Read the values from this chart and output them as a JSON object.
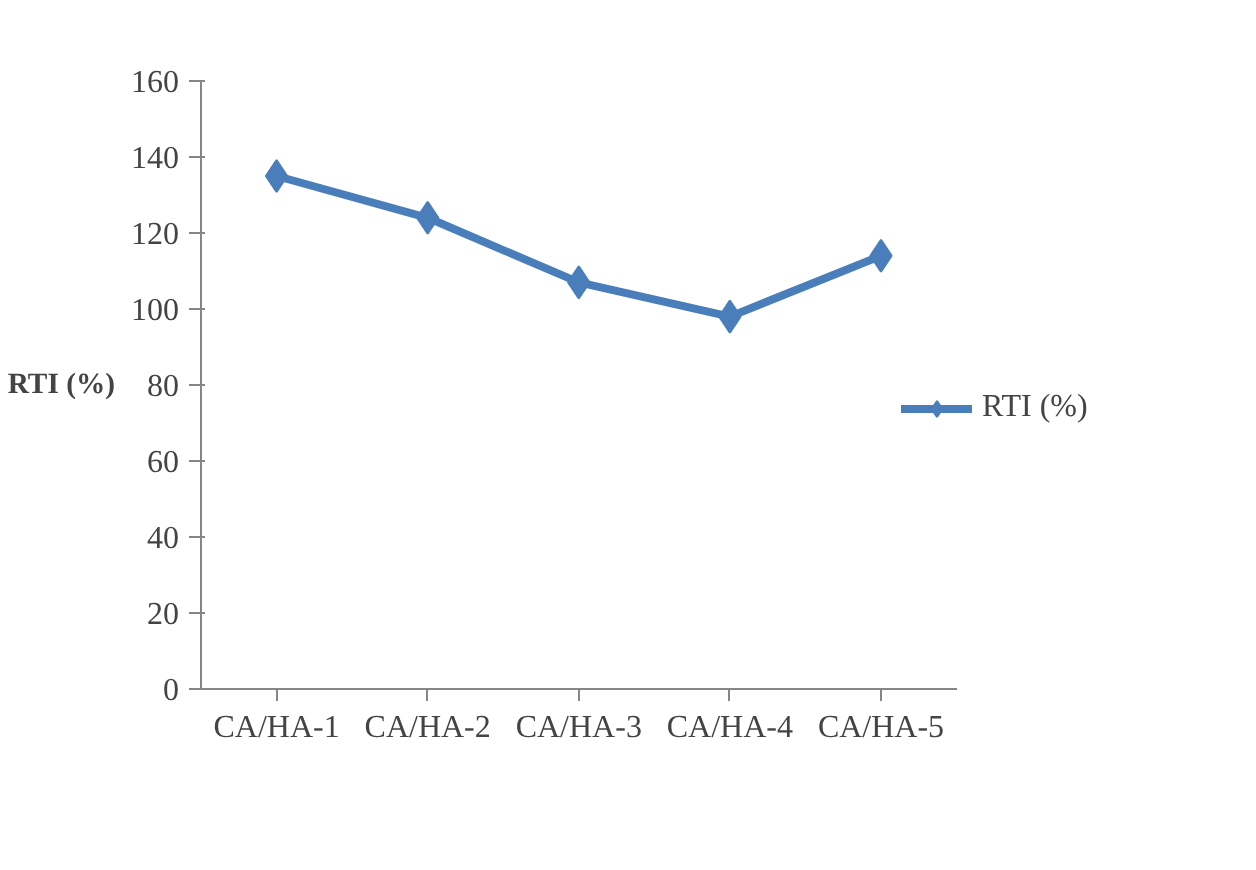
{
  "chart_data": {
    "type": "line",
    "ylabel": "RTI (%)",
    "categories": [
      "CA/HA-1",
      "CA/HA-2",
      "CA/HA-3",
      "CA/HA-4",
      "CA/HA-5"
    ],
    "series": [
      {
        "name": "RTI (%)",
        "color": "#4a7ebb",
        "values": [
          135,
          124,
          107,
          98,
          114
        ]
      }
    ],
    "ylim": [
      0,
      160
    ],
    "yticks": [
      0,
      20,
      40,
      60,
      80,
      100,
      120,
      140,
      160
    ],
    "marker": "diamond",
    "legend": "right",
    "grid": false
  }
}
